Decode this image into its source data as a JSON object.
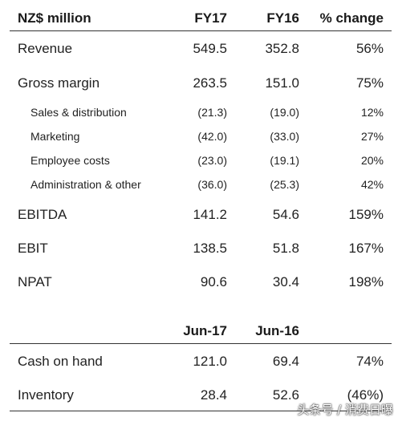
{
  "header": {
    "label": "NZ$ million",
    "col1": "FY17",
    "col2": "FY16",
    "col3": "% change"
  },
  "rows": [
    {
      "label": "Revenue",
      "fy17": "549.5",
      "fy16": "352.8",
      "change": "56%"
    },
    {
      "label": "Gross margin",
      "fy17": "263.5",
      "fy16": "151.0",
      "change": "75%"
    },
    {
      "label": "Sales & distribution",
      "fy17": "(21.3)",
      "fy16": "(19.0)",
      "change": "12%"
    },
    {
      "label": "Marketing",
      "fy17": "(42.0)",
      "fy16": "(33.0)",
      "change": "27%"
    },
    {
      "label": "Employee costs",
      "fy17": "(23.0)",
      "fy16": "(19.1)",
      "change": "20%"
    },
    {
      "label": "Administration & other",
      "fy17": "(36.0)",
      "fy16": "(25.3)",
      "change": "42%"
    },
    {
      "label": "EBITDA",
      "fy17": "141.2",
      "fy16": "54.6",
      "change": "159%"
    },
    {
      "label": "EBIT",
      "fy17": "138.5",
      "fy16": "51.8",
      "change": "167%"
    },
    {
      "label": "NPAT",
      "fy17": "90.6",
      "fy16": "30.4",
      "change": "198%"
    }
  ],
  "header2": {
    "col1": "Jun-17",
    "col2": "Jun-16"
  },
  "rows2": [
    {
      "label": "Cash on hand",
      "jun17": "121.0",
      "jun16": "69.4",
      "change": "74%"
    },
    {
      "label": "Inventory",
      "jun17": "28.4",
      "jun16": "52.6",
      "change": "(46%)"
    }
  ],
  "watermark": "头条号 / 消费日曝"
}
